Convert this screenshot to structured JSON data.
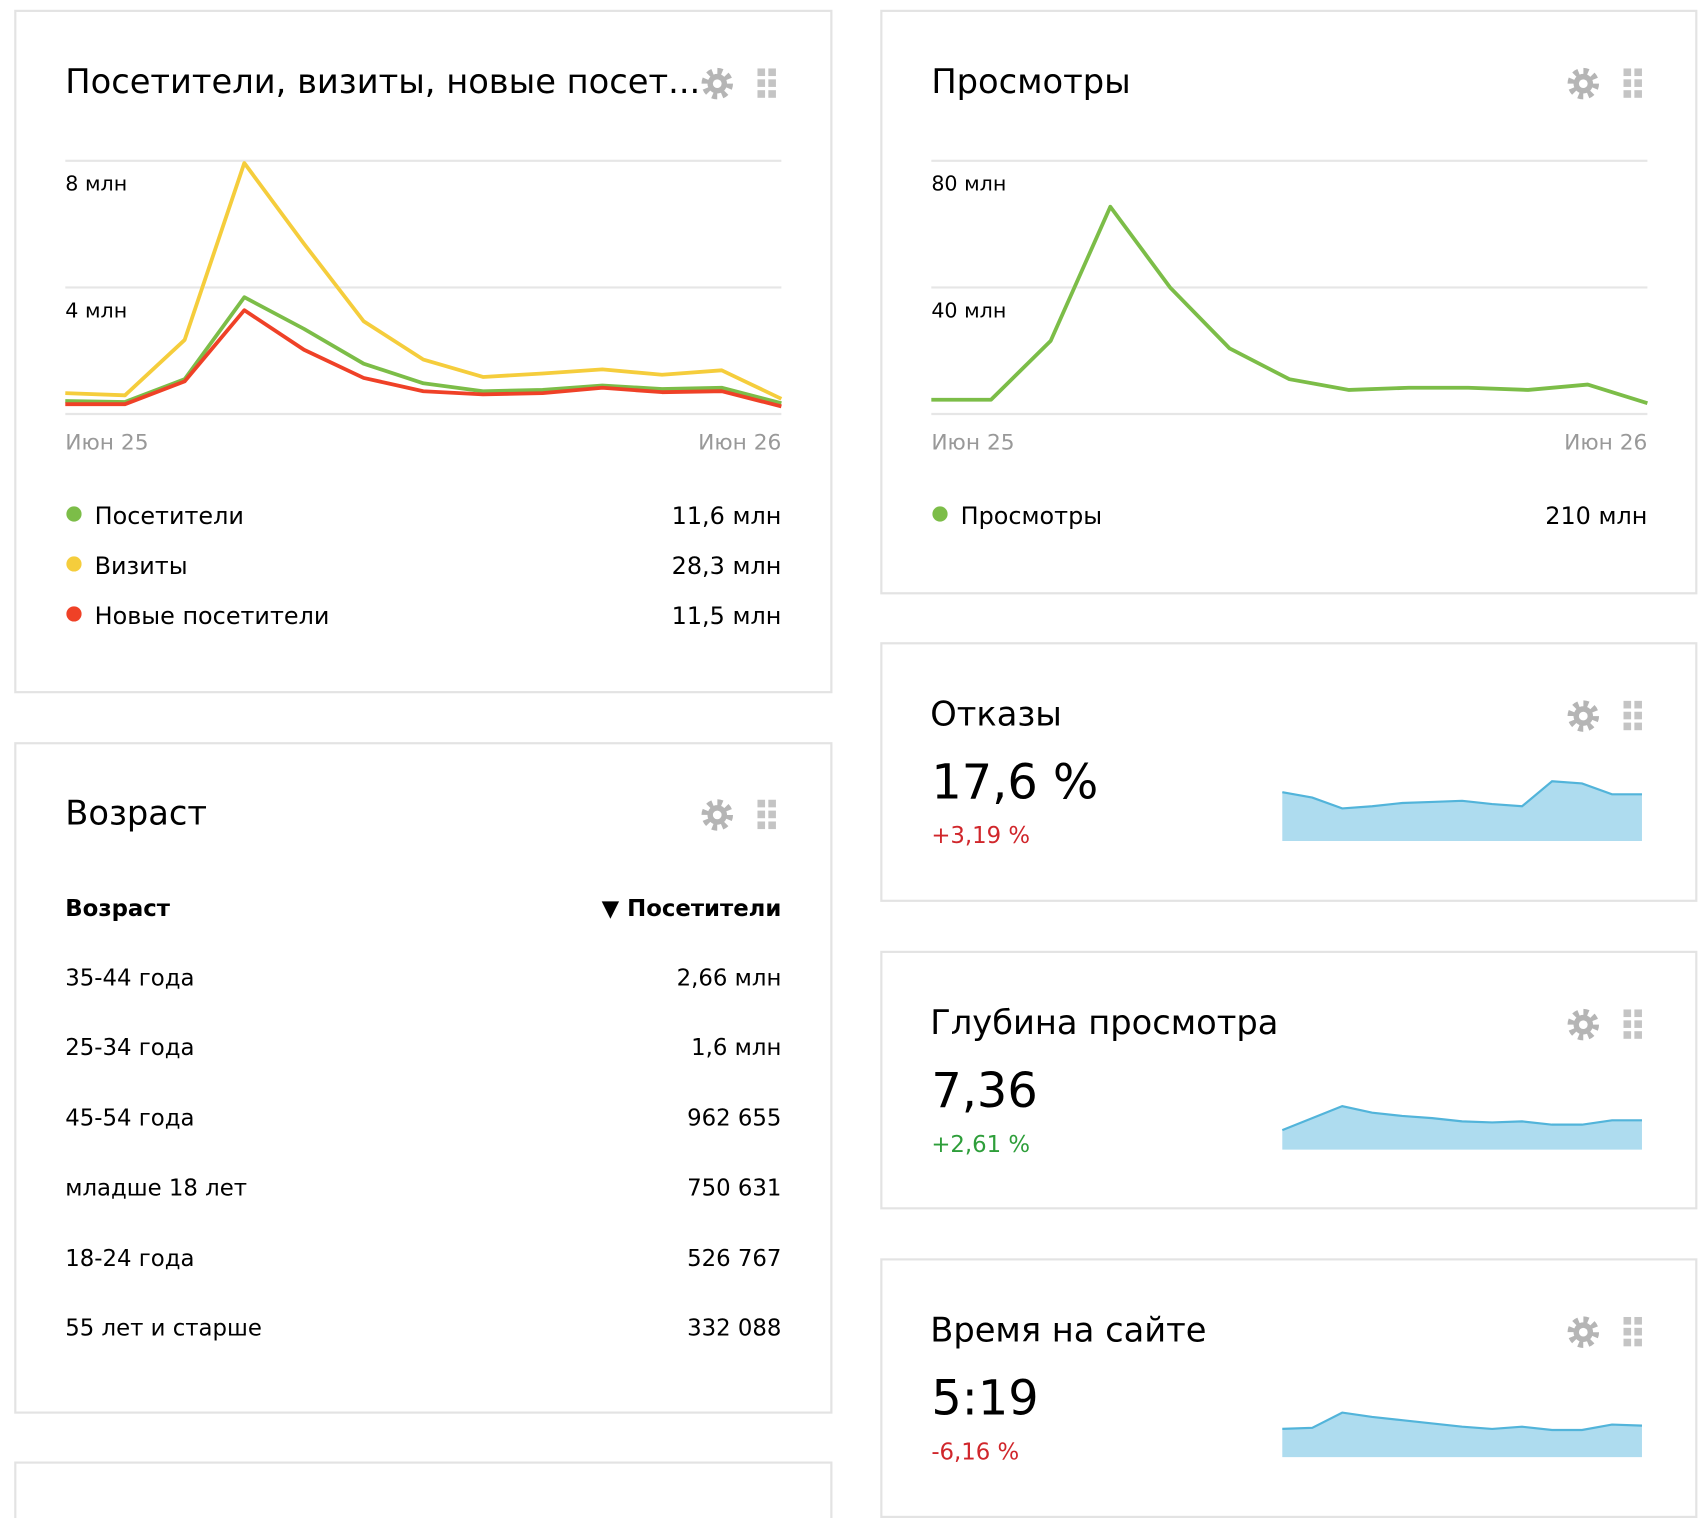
{
  "chart_data": [
    {
      "type": "line",
      "title": "Посетители, визиты, новые посет...",
      "categories": [
        "Июн 25",
        null,
        null,
        null,
        null,
        null,
        null,
        null,
        null,
        null,
        null,
        null,
        "Июн 26"
      ],
      "series": [
        {
          "name": "Посетители",
          "color": "#7cbd48",
          "total": "11,6 млн",
          "values": [
            0.41,
            0.38,
            1.1,
            3.69,
            2.69,
            1.59,
            0.97,
            0.72,
            0.76,
            0.9,
            0.79,
            0.83,
            0.34
          ]
        },
        {
          "name": "Визиты",
          "color": "#f5cd3c",
          "total": "28,3 млн",
          "values": [
            0.66,
            0.59,
            2.34,
            7.93,
            5.38,
            2.93,
            1.72,
            1.17,
            1.28,
            1.41,
            1.24,
            1.38,
            0.48
          ]
        },
        {
          "name": "Новые посетители",
          "color": "#ef4127",
          "total": "11,5 млн",
          "values": [
            0.31,
            0.31,
            1.03,
            3.28,
            2.03,
            1.14,
            0.72,
            0.62,
            0.66,
            0.83,
            0.69,
            0.72,
            0.24
          ]
        }
      ],
      "ylim": [
        0,
        8
      ],
      "yticks": [
        {
          "value": 4,
          "label": "4 млн"
        },
        {
          "value": 8,
          "label": "8 млн"
        }
      ],
      "grid": true
    },
    {
      "type": "line",
      "title": "Просмотры",
      "categories": [
        "Июн 25",
        null,
        null,
        null,
        null,
        null,
        null,
        null,
        null,
        null,
        null,
        null,
        "Июн 26"
      ],
      "series": [
        {
          "name": "Просмотры",
          "color": "#7cbd48",
          "total": "210 млн",
          "values": [
            4.5,
            4.5,
            23.1,
            65.5,
            40,
            20.7,
            11,
            7.6,
            8.3,
            8.3,
            7.6,
            9.3,
            3.4
          ]
        }
      ],
      "ylim": [
        0,
        80
      ],
      "yticks": [
        {
          "value": 40,
          "label": "40 млн"
        },
        {
          "value": 80,
          "label": "80 млн"
        }
      ],
      "grid": true
    },
    {
      "type": "area",
      "title": "Отказы",
      "value_text": "17,6 %",
      "change": "+3,19 %",
      "change_color": "#d0262b",
      "color": "#aedcef",
      "line_color": "#52b4da",
      "ylim": [
        0,
        60
      ],
      "values": [
        45,
        40,
        30,
        32,
        35,
        36,
        37,
        34,
        32,
        55,
        53,
        43,
        43
      ]
    },
    {
      "type": "area",
      "title": "Глубина просмотра",
      "value_text": "7,36",
      "change": "+2,61 %",
      "change_color": "#2e9e3a",
      "color": "#aedcef",
      "line_color": "#52b4da",
      "ylim": [
        0,
        60
      ],
      "values": [
        18,
        29,
        40,
        34,
        31,
        29,
        26,
        25,
        26,
        23,
        23,
        27,
        27
      ]
    },
    {
      "type": "area",
      "title": "Время на сайте",
      "value_text": "5:19",
      "change": "-6,16 %",
      "change_color": "#d0262b",
      "color": "#aedcef",
      "line_color": "#52b4da",
      "ylim": [
        0,
        60
      ],
      "values": [
        26,
        27,
        41,
        37,
        34,
        31,
        28,
        26,
        28,
        25,
        25,
        30,
        29
      ]
    }
  ],
  "age_table": {
    "title": "Возраст",
    "columns": [
      "Возраст",
      "▼ Посетители"
    ],
    "rows": [
      [
        "35-44 года",
        "2,66 млн"
      ],
      [
        "25-34 года",
        "1,6 млн"
      ],
      [
        "45-54 года",
        "962 655"
      ],
      [
        "младше 18 лет",
        "750 631"
      ],
      [
        "18-24 года",
        "526 767"
      ],
      [
        "55 лет и старше",
        "332 088"
      ]
    ]
  }
}
